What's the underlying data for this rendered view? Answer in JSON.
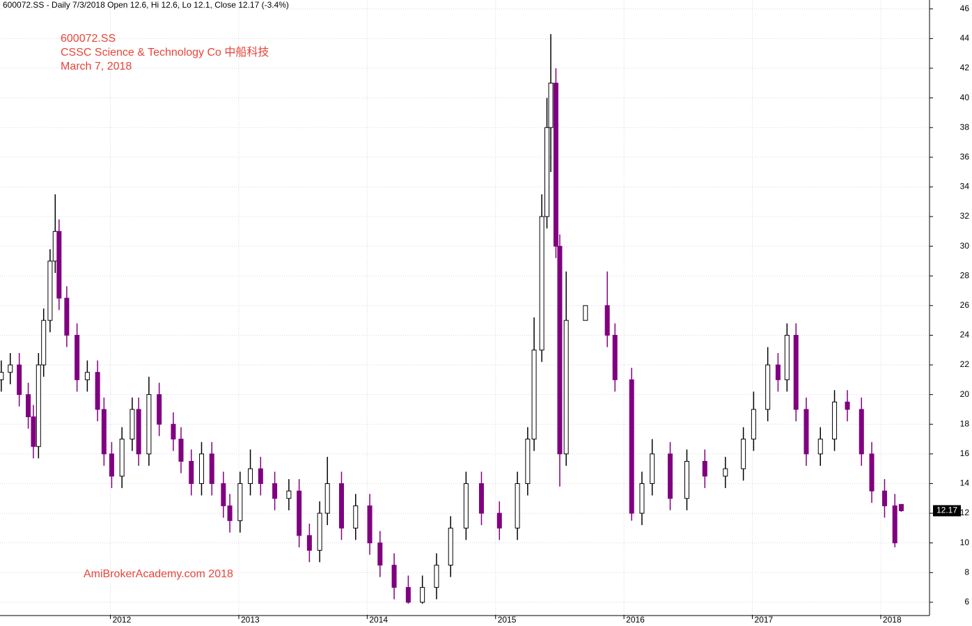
{
  "chart_data": {
    "type": "candlestick",
    "title": "600072.SS - Daily 7/3/2018 Open 12.6, Hi 12.6, Lo 12.1, Close 12.17 (-3.4%)",
    "annotations": [
      "600072.SS",
      "CSSC Science & Technology Co 中船科技",
      "March 7, 2018"
    ],
    "watermark": "AmiBrokerAcademy.com  2018",
    "last_label": "12.17",
    "up_color": "#000000",
    "down_color": "#800080",
    "grid": true,
    "x": [
      2011.15,
      2011.22,
      2011.29,
      2011.36,
      2011.4,
      2011.44,
      2011.48,
      2011.53,
      2011.57,
      2011.6,
      2011.66,
      2011.74,
      2011.82,
      2011.9,
      2011.95,
      2012.01,
      2012.09,
      2012.17,
      2012.22,
      2012.3,
      2012.38,
      2012.49,
      2012.55,
      2012.63,
      2012.71,
      2012.79,
      2012.88,
      2012.93,
      2013.01,
      2013.09,
      2013.17,
      2013.28,
      2013.39,
      2013.47,
      2013.55,
      2013.63,
      2013.69,
      2013.8,
      2013.91,
      2014.02,
      2014.1,
      2014.21,
      2014.32,
      2014.43,
      2014.54,
      2014.65,
      2014.77,
      2014.89,
      2015.03,
      2015.17,
      2015.25,
      2015.3,
      2015.36,
      2015.4,
      2015.43,
      2015.47,
      2015.5,
      2015.55,
      2015.7,
      2015.87,
      2015.93,
      2016.06,
      2016.14,
      2016.22,
      2016.36,
      2016.49,
      2016.63,
      2016.79,
      2016.93,
      2017.01,
      2017.12,
      2017.2,
      2017.27,
      2017.34,
      2017.42,
      2017.53,
      2017.64,
      2017.74,
      2017.85,
      2017.93,
      2018.03,
      2018.11,
      2018.16
    ],
    "open": [
      21,
      21.5,
      22,
      20,
      18.5,
      16.5,
      22,
      25,
      29,
      31,
      26.5,
      24,
      21,
      21.5,
      19,
      16,
      14.5,
      17,
      19,
      16,
      20,
      18,
      17,
      15.5,
      14,
      16,
      14,
      12.5,
      11.5,
      14,
      15,
      14,
      13,
      13.5,
      10.5,
      9.5,
      12,
      14,
      11,
      12.5,
      10,
      8.5,
      7,
      6,
      7,
      8.5,
      11,
      14,
      12,
      11,
      14,
      17,
      23,
      32,
      38,
      41,
      30,
      16,
      25,
      26,
      24,
      21,
      12,
      14,
      16,
      13,
      15.5,
      14.5,
      15,
      17,
      19,
      22,
      21,
      24,
      19,
      16,
      17,
      19.5,
      19,
      16,
      13.5,
      12.5,
      12.6
    ],
    "high": [
      22.3,
      22.8,
      22.8,
      20.8,
      19.3,
      22.8,
      25.8,
      29.8,
      33.5,
      31.8,
      27.3,
      24.8,
      22.3,
      22.3,
      19.8,
      16.8,
      17.8,
      19.8,
      19.8,
      21.2,
      20.8,
      18.8,
      17.8,
      16.3,
      16.8,
      16.8,
      14.8,
      13.3,
      14.8,
      16.3,
      15.8,
      14.8,
      14.3,
      14.3,
      11.3,
      12.8,
      15.8,
      14.8,
      13.3,
      13.3,
      10.8,
      9.3,
      7.8,
      7.8,
      9.3,
      11.8,
      14.8,
      14.8,
      12.8,
      14.8,
      17.8,
      25.2,
      33.5,
      40,
      44.3,
      42,
      30.8,
      28.3,
      26,
      28.3,
      24.8,
      21.8,
      14.8,
      17,
      16.8,
      16.3,
      16.3,
      15.8,
      17.8,
      20.2,
      23.2,
      22.8,
      24.8,
      24.8,
      19.8,
      17.8,
      20.3,
      20.3,
      19.8,
      16.8,
      14.3,
      13.3,
      12.6
    ],
    "low": [
      20.2,
      20.7,
      19.2,
      17.7,
      15.7,
      15.7,
      21.2,
      24.2,
      28.2,
      25.7,
      23.2,
      20.2,
      20.2,
      18.2,
      15.2,
      13.7,
      13.7,
      16.2,
      15.2,
      15.2,
      17.2,
      16.2,
      14.7,
      13.2,
      13.2,
      13.2,
      11.7,
      10.7,
      10.7,
      13.2,
      13.2,
      12.2,
      12.2,
      9.7,
      8.7,
      8.7,
      11.2,
      10.2,
      10.2,
      9.2,
      7.7,
      6.2,
      5.9,
      5.9,
      6.2,
      7.7,
      10.2,
      11.2,
      10.2,
      10.2,
      13.2,
      16.2,
      22.2,
      31.2,
      35,
      29.2,
      13.8,
      15.2,
      25,
      23.2,
      20.2,
      11.5,
      11.2,
      13.2,
      12.2,
      12.2,
      13.7,
      13.7,
      14.2,
      16.2,
      18.2,
      20.2,
      20.2,
      18.2,
      15.2,
      15.2,
      16.2,
      18.2,
      15.2,
      12.7,
      11.7,
      9.7,
      12.1
    ],
    "close": [
      21.5,
      22,
      20,
      18.5,
      16.5,
      22,
      25,
      29,
      31,
      26.5,
      24,
      21,
      21.5,
      19,
      16,
      14.5,
      17,
      19,
      16,
      20,
      18,
      17,
      15.5,
      14,
      16,
      14,
      12.5,
      11.5,
      14,
      15,
      14,
      13,
      13.5,
      10.5,
      9.5,
      12,
      14,
      11,
      12.5,
      10,
      8.5,
      7,
      6,
      7,
      8.5,
      11,
      14,
      12,
      11,
      14,
      17,
      23,
      32,
      38,
      41,
      30,
      16,
      25,
      26,
      24,
      21,
      12,
      14,
      16,
      13,
      15.5,
      14.5,
      15,
      17,
      19,
      22,
      21,
      24,
      19,
      16,
      17,
      19.5,
      19,
      16,
      13.5,
      12.5,
      10,
      12.17
    ],
    "xlim": [
      2011.14,
      2018.38
    ],
    "xticks": [
      2012,
      2013,
      2014,
      2015,
      2016,
      2017,
      2018
    ],
    "ylim": [
      5.15,
      46.6
    ],
    "yticks": [
      6,
      8,
      10,
      12,
      14,
      16,
      18,
      20,
      22,
      24,
      26,
      28,
      30,
      32,
      34,
      36,
      38,
      40,
      42,
      44,
      46
    ]
  }
}
